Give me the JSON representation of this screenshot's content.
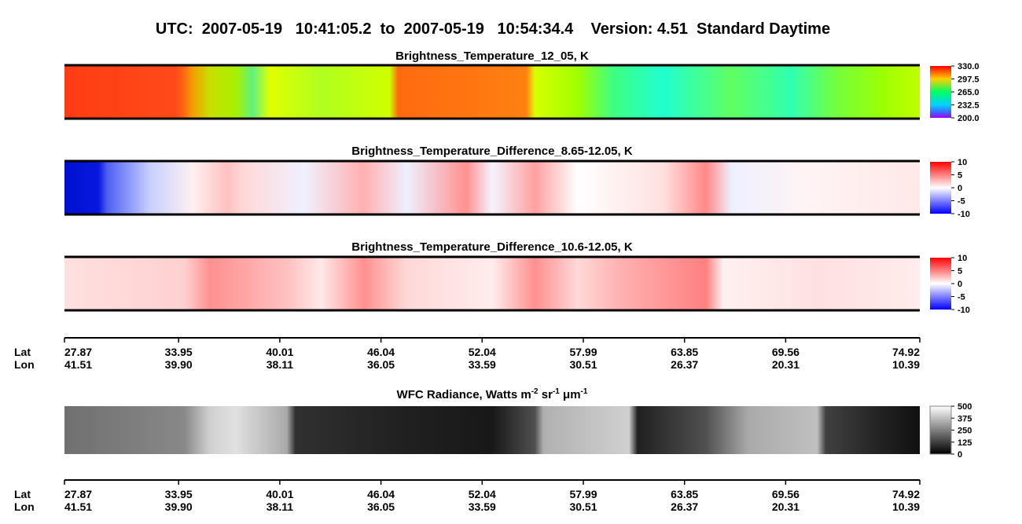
{
  "title": "UTC:  2007-05-19   10:41:05.2  to  2007-05-19   10:54:34.4    Version: 4.51  Standard Daytime",
  "panels": [
    {
      "title": "Brightness_Temperature_12_05, K",
      "colorbar_ticks": [
        "330.0",
        "297.5",
        "265.0",
        "232.5",
        "200.0"
      ]
    },
    {
      "title": "Brightness_Temperature_Difference_8.65-12.05, K",
      "colorbar_ticks": [
        "10",
        "5",
        "0",
        "-5",
        "-10"
      ]
    },
    {
      "title": "Brightness_Temperature_Difference_10.6-12.05, K",
      "colorbar_ticks": [
        "10",
        "5",
        "0",
        "-5",
        "-10"
      ]
    },
    {
      "title_parts": [
        "WFC Radiance, Watts m",
        "-2",
        " sr",
        "-1",
        " μm",
        "-1"
      ],
      "colorbar_ticks": [
        "500",
        "375",
        "250",
        "125",
        "0"
      ]
    }
  ],
  "axes": [
    {
      "lat_label": "Lat",
      "lon_label": "Lon",
      "lat": [
        "27.87",
        "33.95",
        "40.01",
        "46.04",
        "52.04",
        "57.99",
        "63.85",
        "69.56",
        "74.92"
      ],
      "lon": [
        "41.51",
        "39.90",
        "38.11",
        "36.05",
        "33.59",
        "30.51",
        "26.37",
        "20.31",
        "10.39"
      ]
    },
    {
      "lat_label": "Lat",
      "lon_label": "Lon",
      "lat": [
        "27.87",
        "33.95",
        "40.01",
        "46.04",
        "52.04",
        "57.99",
        "63.85",
        "69.56",
        "74.92"
      ],
      "lon": [
        "41.51",
        "39.90",
        "38.11",
        "36.05",
        "33.59",
        "30.51",
        "26.37",
        "20.31",
        "10.39"
      ]
    }
  ]
}
